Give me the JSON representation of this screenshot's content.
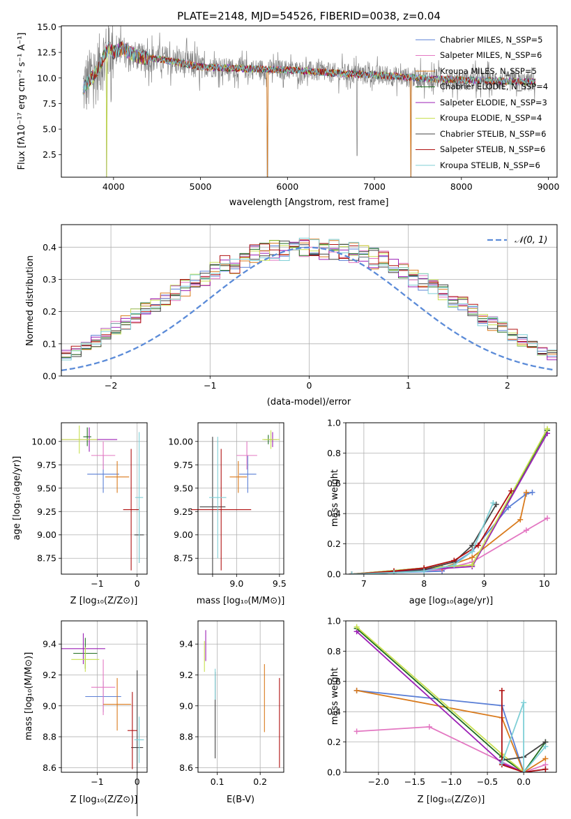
{
  "colors": [
    "#5a7fd6",
    "#e377c2",
    "#d97a1c",
    "#1f6e1f",
    "#9b1fb5",
    "#c8e050",
    "#444444",
    "#b01010",
    "#7fcfd6"
  ],
  "chart_data": [
    {
      "id": "spectrum",
      "type": "line",
      "title": "PLATE=2148, MJD=54526, FIBERID=0038, z=0.04",
      "xlabel": "wavelength [Angstrom, rest frame]",
      "ylabel": "Flux [fλ10⁻¹⁷ erg cm⁻² s⁻¹ A⁻¹]",
      "xlim": [
        3400,
        9100
      ],
      "ylim": [
        0.3,
        15.1
      ],
      "xticks": [
        4000,
        5000,
        6000,
        7000,
        8000,
        9000
      ],
      "yticks": [
        2.5,
        5.0,
        7.5,
        10.0,
        12.5,
        15.0
      ],
      "grid": false,
      "legend_position": "top-right",
      "series": [
        {
          "name": "Chabrier MILES, N_SSP=5"
        },
        {
          "name": "Salpeter MILES, N_SSP=6"
        },
        {
          "name": "Kroupa MILES, N_SSP=5"
        },
        {
          "name": "Chabrier ELODIE, N_SSP=4"
        },
        {
          "name": "Salpeter ELODIE, N_SSP=3"
        },
        {
          "name": "Kroupa ELODIE, N_SSP=4"
        },
        {
          "name": "Chabrier STELIB, N_SSP=6"
        },
        {
          "name": "Salpeter STELIB, N_SSP=6"
        },
        {
          "name": "Kroupa STELIB, N_SSP=6"
        }
      ],
      "continuum": {
        "x": [
          3650,
          3700,
          3800,
          3900,
          3950,
          4000,
          4100,
          4200,
          4300,
          4500,
          5000,
          5500,
          6000,
          6500,
          7000,
          7500,
          8000,
          8500,
          8850
        ],
        "y": [
          9.0,
          9.5,
          10.5,
          12.3,
          13.0,
          12.5,
          12.9,
          12.4,
          12.0,
          11.9,
          11.1,
          10.9,
          10.8,
          10.5,
          10.3,
          10.0,
          9.8,
          9.7,
          9.6
        ]
      },
      "notes": {
        "data_color": "#808080",
        "dips": [
          {
            "x": 3920,
            "y": 0.3
          },
          {
            "x": 5770,
            "y": 0.3
          },
          {
            "x": 6800,
            "y": 2.4
          },
          {
            "x": 7420,
            "y": 0.3
          }
        ]
      }
    },
    {
      "id": "residuals",
      "type": "line",
      "xlabel": "(data-model)/error",
      "ylabel": "Normed distribution",
      "xlim": [
        -2.5,
        2.5
      ],
      "ylim": [
        0,
        0.47
      ],
      "xticks": [
        -2,
        -1,
        0,
        1,
        2
      ],
      "yticks": [
        0.0,
        0.1,
        0.2,
        0.3,
        0.4
      ],
      "grid": true,
      "legend": [
        {
          "name": "𝒩(0, 1)"
        }
      ],
      "legend_position": "top-right",
      "bin_width": 0.1,
      "histogram_mean": [
        0.02,
        0.024,
        0.034,
        0.045,
        0.056,
        0.066,
        0.077,
        0.089,
        0.108,
        0.128,
        0.148,
        0.167,
        0.186,
        0.204,
        0.221,
        0.237,
        0.258,
        0.276,
        0.29,
        0.305,
        0.325,
        0.342,
        0.35,
        0.362,
        0.374,
        0.38,
        0.388,
        0.392,
        0.394,
        0.398,
        0.4,
        0.392,
        0.394,
        0.388,
        0.382,
        0.374,
        0.364,
        0.355,
        0.342,
        0.325,
        0.306,
        0.29,
        0.276,
        0.258,
        0.237,
        0.221,
        0.2,
        0.178,
        0.162,
        0.146,
        0.128,
        0.11,
        0.09,
        0.075,
        0.066,
        0.055,
        0.045,
        0.035,
        0.028,
        0.022
      ],
      "gaussian": {
        "mean": 0,
        "sigma": 1,
        "peak": 0.399
      }
    },
    {
      "id": "age_vs_Z",
      "type": "errorbar",
      "xlabel": "Z [log₁₀(Z/Z⊙)]",
      "ylabel": "age  [log₁₀(age/yr)]",
      "xlim": [
        -1.9,
        0.25
      ],
      "ylim": [
        8.58,
        10.2
      ],
      "xticks": [
        -1,
        0
      ],
      "yticks": [
        8.75,
        9.0,
        9.25,
        9.5,
        9.75,
        10.0
      ],
      "grid": true,
      "points": [
        {
          "x": -0.85,
          "y": 9.65,
          "xerr": 0.4,
          "yerr": 0.2
        },
        {
          "x": -0.85,
          "y": 9.85,
          "xerr": 0.3,
          "yerr": 0.15
        },
        {
          "x": -0.5,
          "y": 9.62,
          "xerr": 0.3,
          "yerr": 0.17
        },
        {
          "x": -1.25,
          "y": 10.05,
          "xerr": 0.1,
          "yerr": 0.1
        },
        {
          "x": -1.2,
          "y": 10.02,
          "xerr": 0.7,
          "yerr": 0.13
        },
        {
          "x": -1.45,
          "y": 10.02,
          "xerr": 0.45,
          "yerr": 0.15
        },
        {
          "x": 0.05,
          "y": 9.0,
          "xerr": 0.12,
          "yerr": 0.3
        },
        {
          "x": -0.15,
          "y": 9.27,
          "xerr": 0.2,
          "yerr": 0.65
        },
        {
          "x": 0.05,
          "y": 9.4,
          "xerr": 0.1,
          "yerr": 0.7
        }
      ]
    },
    {
      "id": "age_vs_mass",
      "type": "errorbar",
      "xlabel": "mass [log₁₀(M/M⊙)]",
      "xlim": [
        8.55,
        9.55
      ],
      "ylim": [
        8.58,
        10.2
      ],
      "xticks": [
        9.0,
        9.5
      ],
      "yticks": [
        8.75,
        9.0,
        9.25,
        9.5,
        9.75,
        10.0
      ],
      "grid": true,
      "points": [
        {
          "x": 9.13,
          "y": 9.65,
          "xerr": 0.1,
          "yerr": 0.2
        },
        {
          "x": 9.12,
          "y": 9.85,
          "xerr": 0.12,
          "yerr": 0.15
        },
        {
          "x": 9.02,
          "y": 9.62,
          "xerr": 0.1,
          "yerr": 0.17
        },
        {
          "x": 9.37,
          "y": 10.02,
          "xerr": 0.05,
          "yerr": 0.05
        },
        {
          "x": 9.42,
          "y": 10.02,
          "xerr": 0.05,
          "yerr": 0.08
        },
        {
          "x": 9.4,
          "y": 10.02,
          "xerr": 0.1,
          "yerr": 0.1
        },
        {
          "x": 8.72,
          "y": 9.3,
          "xerr": 0.15,
          "yerr": 0.75
        },
        {
          "x": 8.82,
          "y": 9.27,
          "xerr": 0.35,
          "yerr": 0.65
        },
        {
          "x": 8.78,
          "y": 9.4,
          "xerr": 0.1,
          "yerr": 0.65
        }
      ]
    },
    {
      "id": "weight_vs_age",
      "type": "line",
      "xlabel": "age  [log₁₀(age/yr)]",
      "ylabel": "mass weight",
      "xlim": [
        6.7,
        10.2
      ],
      "ylim": [
        0,
        1.0
      ],
      "xticks": [
        7,
        8,
        9,
        10
      ],
      "yticks": [
        0.0,
        0.2,
        0.4,
        0.6,
        0.8,
        1.0
      ],
      "grid": true,
      "series": [
        {
          "x": [
            6.8,
            7.5,
            8.3,
            8.8,
            9.4,
            9.7,
            9.8
          ],
          "y": [
            0.0,
            0.01,
            0.02,
            0.15,
            0.44,
            0.53,
            0.54
          ]
        },
        {
          "x": [
            6.8,
            7.5,
            8.3,
            8.8,
            9.7,
            10.05
          ],
          "y": [
            0.0,
            0.01,
            0.03,
            0.08,
            0.29,
            0.37
          ]
        },
        {
          "x": [
            6.8,
            7.5,
            8.3,
            8.8,
            9.6,
            9.7
          ],
          "y": [
            0.0,
            0.02,
            0.04,
            0.11,
            0.36,
            0.54
          ]
        },
        {
          "x": [
            6.8,
            8.0,
            8.8,
            10.05
          ],
          "y": [
            0.0,
            0.04,
            0.06,
            0.95
          ]
        },
        {
          "x": [
            6.8,
            8.0,
            8.8,
            10.05
          ],
          "y": [
            0.0,
            0.03,
            0.05,
            0.93
          ]
        },
        {
          "x": [
            6.8,
            8.0,
            8.8,
            10.05
          ],
          "y": [
            0.0,
            0.04,
            0.06,
            0.96
          ]
        },
        {
          "x": [
            6.8,
            7.5,
            8.0,
            8.5,
            8.8,
            9.2
          ],
          "y": [
            0.0,
            0.01,
            0.03,
            0.08,
            0.19,
            0.46
          ]
        },
        {
          "x": [
            6.8,
            7.5,
            8.0,
            8.5,
            8.9,
            9.45
          ],
          "y": [
            0.0,
            0.02,
            0.04,
            0.09,
            0.19,
            0.55
          ]
        },
        {
          "x": [
            6.8,
            7.5,
            8.0,
            8.5,
            8.8,
            9.15
          ],
          "y": [
            0.0,
            0.01,
            0.02,
            0.06,
            0.15,
            0.47
          ]
        }
      ]
    },
    {
      "id": "mass_vs_Z",
      "type": "errorbar",
      "xlabel": "Z [log₁₀(Z/Z⊙)]",
      "ylabel": "mass [log₁₀(M/M⊙)]",
      "xlim": [
        -1.9,
        0.25
      ],
      "ylim": [
        8.57,
        9.55
      ],
      "xticks": [
        -1,
        0
      ],
      "yticks": [
        8.6,
        8.8,
        9.0,
        9.2,
        9.4
      ],
      "grid": true,
      "points": [
        {
          "x": -0.85,
          "y": 9.06,
          "xerr": 0.45,
          "yerr": 0.1
        },
        {
          "x": -0.85,
          "y": 9.12,
          "xerr": 0.3,
          "yerr": 0.18
        },
        {
          "x": -0.5,
          "y": 9.01,
          "xerr": 0.35,
          "yerr": 0.17
        },
        {
          "x": -1.3,
          "y": 9.34,
          "xerr": 0.3,
          "yerr": 0.1
        },
        {
          "x": -1.35,
          "y": 9.37,
          "xerr": 0.55,
          "yerr": 0.1
        },
        {
          "x": -1.3,
          "y": 9.3,
          "xerr": 0.35,
          "yerr": 0.08
        },
        {
          "x": 0.0,
          "y": 8.73,
          "xerr": 0.15,
          "yerr": 0.5
        },
        {
          "x": -0.12,
          "y": 8.84,
          "xerr": 0.12,
          "yerr": 0.25
        },
        {
          "x": 0.05,
          "y": 8.78,
          "xerr": 0.12,
          "yerr": 0.15
        }
      ]
    },
    {
      "id": "mass_vs_EBV",
      "type": "errorbar",
      "xlabel": "E(B-V)",
      "xlim": [
        0.055,
        0.255
      ],
      "ylim": [
        8.57,
        9.55
      ],
      "xticks": [
        0.1,
        0.2
      ],
      "yticks": [
        8.6,
        8.8,
        9.0,
        9.2,
        9.4
      ],
      "grid": true,
      "points": [
        {
          "x": 0.095,
          "y": 8.94,
          "xerr": 0,
          "yerr": 0.28
        },
        {
          "x": 0.21,
          "y": 9.05,
          "xerr": 0,
          "yerr": 0.22
        },
        {
          "x": 0.245,
          "y": 8.89,
          "xerr": 0,
          "yerr": 0.29
        },
        {
          "x": 0.073,
          "y": 9.39,
          "xerr": 0,
          "yerr": 0.1
        },
        {
          "x": 0.07,
          "y": 9.32,
          "xerr": 0,
          "yerr": 0.1
        },
        {
          "x": 0.095,
          "y": 9.14,
          "xerr": 0,
          "yerr": 0.1
        }
      ]
    },
    {
      "id": "weight_vs_Z",
      "type": "line",
      "xlabel": "Z [log₁₀(Z/Z⊙)]",
      "ylabel": "mass weight",
      "xlim": [
        -2.45,
        0.45
      ],
      "ylim": [
        0,
        1.0
      ],
      "xticks": [
        -2.0,
        -1.5,
        -1.0,
        -0.5,
        0.0
      ],
      "yticks": [
        0.0,
        0.2,
        0.4,
        0.6,
        0.8,
        1.0
      ],
      "grid": true,
      "series": [
        {
          "x": [
            -2.3,
            -0.3,
            0.0,
            0.3
          ],
          "y": [
            0.54,
            0.44,
            0.0,
            0.02
          ]
        },
        {
          "x": [
            -2.3,
            -1.3,
            0.0,
            0.3
          ],
          "y": [
            0.27,
            0.3,
            0.0,
            0.05
          ]
        },
        {
          "x": [
            -2.3,
            -0.3,
            0.0,
            0.3
          ],
          "y": [
            0.54,
            0.36,
            0.0,
            0.09
          ]
        },
        {
          "x": [
            -2.3,
            -0.3,
            0.0,
            0.3
          ],
          "y": [
            0.95,
            0.1,
            0.0,
            0.2
          ]
        },
        {
          "x": [
            -2.3,
            -0.3,
            0.0
          ],
          "y": [
            0.93,
            0.06,
            0.0
          ]
        },
        {
          "x": [
            -2.3,
            -0.3,
            0.0
          ],
          "y": [
            0.96,
            0.12,
            0.0
          ]
        },
        {
          "x": [
            -0.3,
            0.0,
            0.3
          ],
          "y": [
            0.08,
            0.1,
            0.2
          ]
        },
        {
          "x": [
            -0.3,
            -0.3,
            0.0,
            0.3
          ],
          "y": [
            0.54,
            0.05,
            0.0,
            0.02
          ]
        },
        {
          "x": [
            -0.3,
            0.0,
            0.0,
            0.3
          ],
          "y": [
            0.06,
            0.46,
            0.0,
            0.17
          ]
        }
      ]
    }
  ]
}
